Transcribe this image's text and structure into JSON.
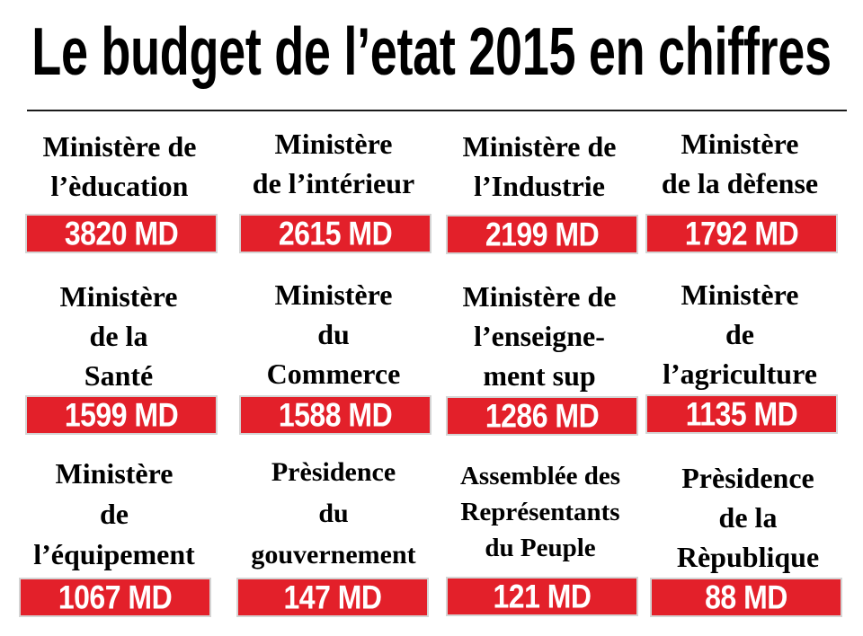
{
  "title": "Le budget de l’etat 2015 en chiffres",
  "colors": {
    "accent": "#e3202a",
    "accent_edge": "#d4d4d4",
    "text": "#000000",
    "amount_text": "#ffffff"
  },
  "items": [
    {
      "lines": [
        "Ministère de",
        "l’èducation"
      ],
      "amount": "3820 MD"
    },
    {
      "lines": [
        "Ministère",
        "de l’intérieur"
      ],
      "amount": "2615 MD"
    },
    {
      "lines": [
        "Ministère de",
        "l’Industrie"
      ],
      "amount": "2199 MD"
    },
    {
      "lines": [
        "Ministère",
        "de la dèfense"
      ],
      "amount": "1792 MD"
    },
    {
      "lines": [
        "Ministère",
        "de la",
        "Santé"
      ],
      "amount": "1599 MD"
    },
    {
      "lines": [
        "Ministère",
        "du",
        "Commerce"
      ],
      "amount": "1588 MD"
    },
    {
      "lines": [
        "Ministère de",
        "l’enseigne-",
        "ment sup"
      ],
      "amount": "1286 MD"
    },
    {
      "lines": [
        "Ministère",
        "de",
        "l’agriculture"
      ],
      "amount": "1135 MD"
    },
    {
      "lines": [
        "Ministère",
        "de",
        "l’équipement"
      ],
      "amount": "1067 MD"
    },
    {
      "lines": [
        "Prèsidence",
        "du",
        "gouvernement"
      ],
      "amount": "147 MD"
    },
    {
      "lines": [
        "Assemblée des",
        "Représentants",
        "du Peuple"
      ],
      "amount": "121 MD"
    },
    {
      "lines": [
        "Prèsidence",
        "de la",
        "Rèpublique"
      ],
      "amount": "88 MD"
    }
  ]
}
